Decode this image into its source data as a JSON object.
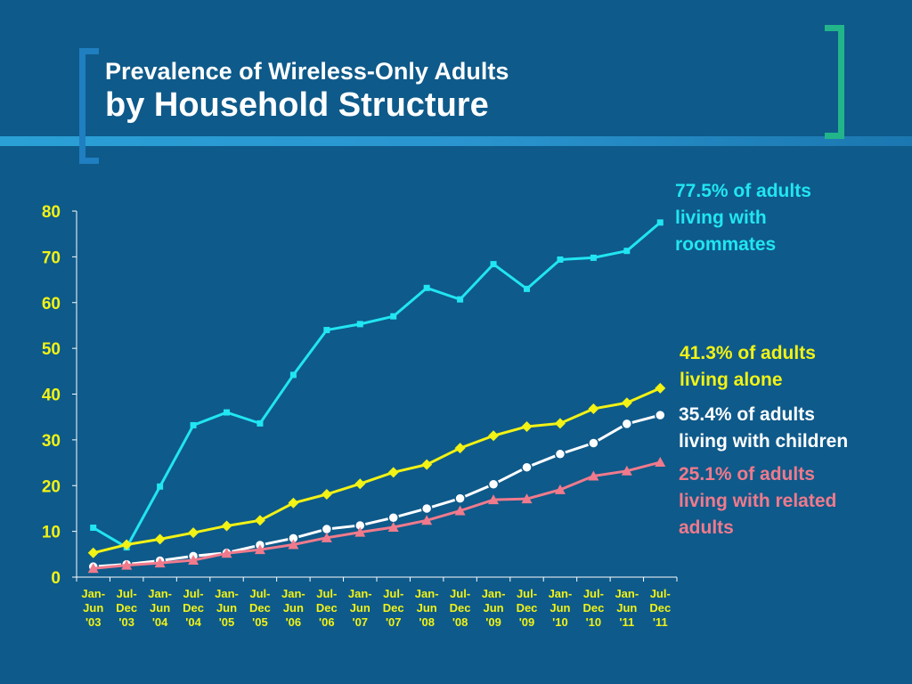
{
  "title": {
    "line1": "Prevalence of Wireless-Only Adults",
    "line2": "by Household Structure"
  },
  "chart_data": {
    "type": "line",
    "title": "Prevalence of Wireless-Only Adults by Household Structure",
    "xlabel": "",
    "ylabel": "",
    "ylim": [
      0,
      80
    ],
    "yticks": [
      0,
      10,
      20,
      30,
      40,
      50,
      60,
      70,
      80
    ],
    "grid": false,
    "categories": [
      [
        "Jan-",
        "Jun",
        "'03"
      ],
      [
        "Jul-",
        "Dec",
        "'03"
      ],
      [
        "Jan-",
        "Jun",
        "'04"
      ],
      [
        "Jul-",
        "Dec",
        "'04"
      ],
      [
        "Jan-",
        "Jun",
        "'05"
      ],
      [
        "Jul-",
        "Dec",
        "'05"
      ],
      [
        "Jan-",
        "Jun",
        "'06"
      ],
      [
        "Jul-",
        "Dec",
        "'06"
      ],
      [
        "Jan-",
        "Jun",
        "'07"
      ],
      [
        "Jul-",
        "Dec",
        "'07"
      ],
      [
        "Jan-",
        "Jun",
        "'08"
      ],
      [
        "Jul-",
        "Dec",
        "'08"
      ],
      [
        "Jan-",
        "Jun",
        "'09"
      ],
      [
        "Jul-",
        "Dec",
        "'09"
      ],
      [
        "Jan-",
        "Jun",
        "'10"
      ],
      [
        "Jul-",
        "Dec",
        "'10"
      ],
      [
        "Jan-",
        "Jun",
        "'11"
      ],
      [
        "Jul-",
        "Dec",
        "'11"
      ]
    ],
    "series": [
      {
        "id": "roommates",
        "label": "77.5% of adults\nliving with\nroommates",
        "color": "#21e5f2",
        "marker": "square",
        "values": [
          10.8,
          6.5,
          19.8,
          33.2,
          36.0,
          33.6,
          44.2,
          54.0,
          55.3,
          57.0,
          63.2,
          60.7,
          68.4,
          63.0,
          69.4,
          69.8,
          71.3,
          77.5
        ]
      },
      {
        "id": "alone",
        "label": "41.3% of adults\nliving alone",
        "color": "#f2f215",
        "marker": "diamond",
        "values": [
          5.3,
          7.1,
          8.3,
          9.7,
          11.2,
          12.4,
          16.2,
          18.1,
          20.4,
          22.9,
          24.6,
          28.2,
          30.9,
          32.9,
          33.6,
          36.8,
          38.1,
          41.3
        ]
      },
      {
        "id": "children",
        "label": "35.4% of adults\nliving with children",
        "color": "#ffffff",
        "marker": "circle",
        "values": [
          2.3,
          2.8,
          3.6,
          4.6,
          5.3,
          7.0,
          8.5,
          10.5,
          11.3,
          13.0,
          15.0,
          17.2,
          20.3,
          24.0,
          26.9,
          29.3,
          33.5,
          35.4
        ]
      },
      {
        "id": "related",
        "label": "25.1% of adults\nliving with related\nadults",
        "color": "#f07a8c",
        "marker": "triangle",
        "values": [
          1.9,
          2.6,
          3.1,
          3.7,
          5.2,
          6.0,
          7.1,
          8.6,
          9.8,
          10.9,
          12.4,
          14.5,
          16.9,
          17.1,
          19.1,
          22.1,
          23.2,
          25.1
        ]
      }
    ]
  },
  "colors": {
    "background": "#0e5a8a",
    "tick_labels": "#f2f215",
    "axis": "#ffffff"
  }
}
